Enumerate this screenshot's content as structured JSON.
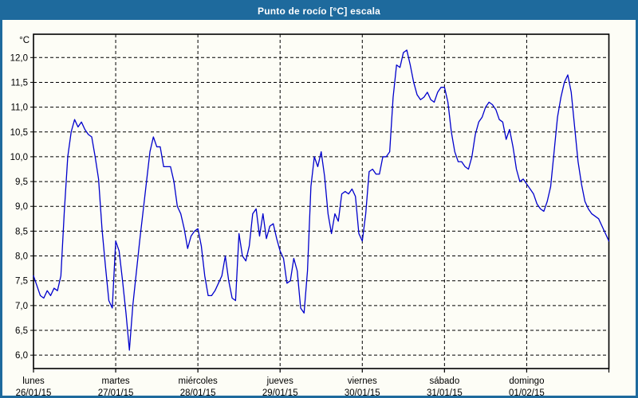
{
  "window": {
    "title": "Punto de rocío [°C] escala",
    "title_bar_color": "#1e6a9d",
    "border_color": "#1e6a9d",
    "background_color": "#fdfdf6"
  },
  "chart_data": {
    "type": "line",
    "title": "Punto de rocío [°C] escala",
    "ylabel": "°C",
    "y_unit_label": "°C",
    "y_gridlines_min": 6.0,
    "y_gridlines_max": 12.0,
    "y_gridline_step": 0.5,
    "y_tick_labels": [
      "12,0",
      "11,5",
      "11,0",
      "10,5",
      "10,0",
      "9,5",
      "9,0",
      "8,5",
      "8,0",
      "7,5",
      "7,0",
      "6,5",
      "6,0"
    ],
    "y_axis_drawn_range": [
      5.73,
      12.47
    ],
    "grid": "dashed-black",
    "legend": "none",
    "line_color": "#0000cc",
    "x_days": [
      {
        "name": "lunes",
        "date": "26/01/15"
      },
      {
        "name": "martes",
        "date": "27/01/15"
      },
      {
        "name": "miércoles",
        "date": "28/01/15"
      },
      {
        "name": "jueves",
        "date": "29/01/15"
      },
      {
        "name": "viernes",
        "date": "30/01/15"
      },
      {
        "name": "sábado",
        "date": "31/01/15"
      },
      {
        "name": "domingo",
        "date": "01/02/15"
      }
    ],
    "points_per_day": 24,
    "values_degC": [
      7.6,
      7.4,
      7.2,
      7.15,
      7.3,
      7.2,
      7.35,
      7.3,
      7.6,
      8.9,
      10.0,
      10.5,
      10.75,
      10.6,
      10.7,
      10.55,
      10.45,
      10.4,
      10.0,
      9.55,
      8.55,
      7.8,
      7.1,
      6.95,
      8.3,
      8.1,
      7.5,
      6.85,
      6.1,
      7.0,
      7.65,
      8.3,
      8.9,
      9.5,
      10.1,
      10.4,
      10.2,
      10.2,
      9.8,
      9.8,
      9.8,
      9.5,
      9.0,
      8.85,
      8.55,
      8.15,
      8.4,
      8.5,
      8.55,
      8.2,
      7.6,
      7.2,
      7.2,
      7.3,
      7.45,
      7.6,
      8.0,
      7.5,
      7.15,
      7.1,
      8.45,
      8.0,
      7.9,
      8.2,
      8.85,
      8.95,
      8.4,
      8.85,
      8.35,
      8.6,
      8.65,
      8.35,
      8.1,
      7.95,
      7.45,
      7.5,
      7.95,
      7.7,
      6.95,
      6.85,
      7.7,
      9.4,
      10.0,
      9.8,
      10.1,
      9.6,
      8.85,
      8.45,
      8.85,
      8.7,
      9.25,
      9.3,
      9.25,
      9.35,
      9.2,
      8.45,
      8.3,
      8.85,
      9.7,
      9.75,
      9.65,
      9.65,
      10.0,
      10.0,
      10.1,
      11.2,
      11.85,
      11.8,
      12.1,
      12.15,
      11.85,
      11.5,
      11.25,
      11.15,
      11.2,
      11.3,
      11.15,
      11.1,
      11.3,
      11.4,
      11.4,
      11.1,
      10.5,
      10.1,
      9.9,
      9.9,
      9.8,
      9.75,
      10.0,
      10.45,
      10.7,
      10.8,
      11.0,
      11.1,
      11.05,
      10.95,
      10.75,
      10.7,
      10.35,
      10.55,
      10.2,
      9.75,
      9.5,
      9.55,
      9.45,
      9.35,
      9.25,
      9.05,
      8.95,
      8.9,
      9.1,
      9.4,
      10.1,
      10.8,
      11.2,
      11.5,
      11.65,
      11.3,
      10.6,
      9.9,
      9.45,
      9.1,
      8.95,
      8.85,
      8.8,
      8.75,
      8.6,
      8.45,
      8.3
    ]
  }
}
